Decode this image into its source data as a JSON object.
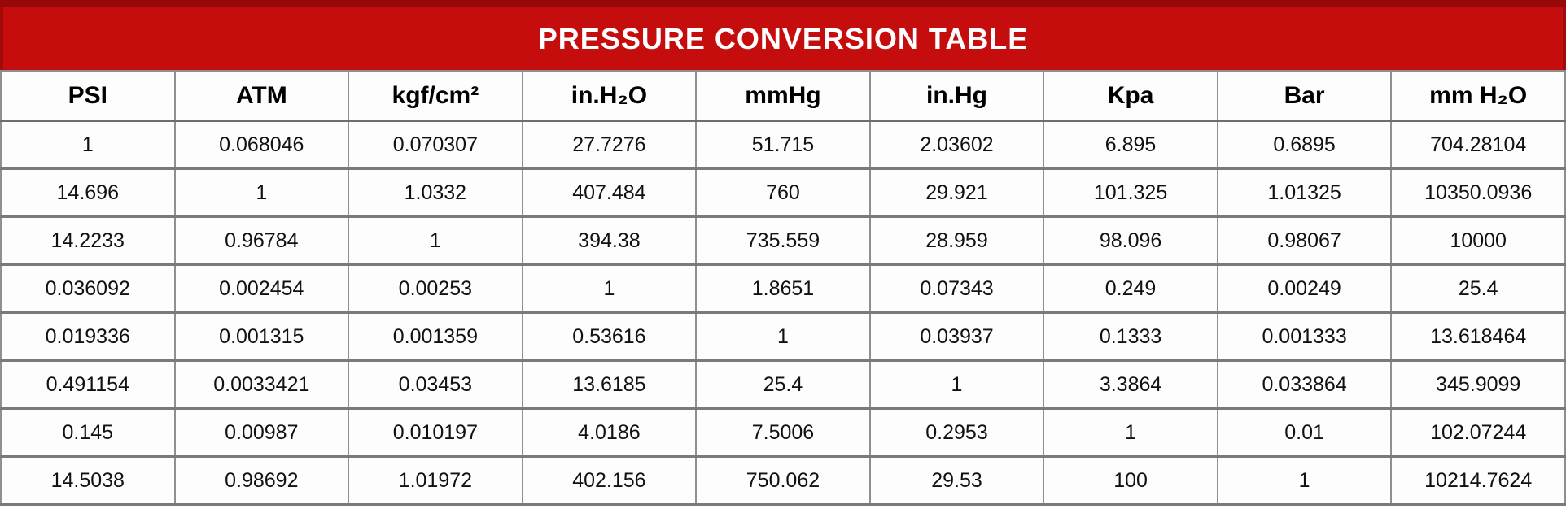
{
  "banner": {
    "title": "PRESSURE CONVERSION TABLE",
    "background_color": "#c60d0d",
    "border_color": "#970909",
    "text_color": "#ffffff"
  },
  "chart_data": {
    "type": "table",
    "title": "PRESSURE CONVERSION TABLE",
    "columns": [
      "PSI",
      "ATM",
      "kgf/cm²",
      "in.H₂O",
      "mmHg",
      "in.Hg",
      "Kpa",
      "Bar",
      "mm H₂O"
    ],
    "rows": [
      [
        "1",
        "0.068046",
        "0.070307",
        "27.7276",
        "51.715",
        "2.03602",
        "6.895",
        "0.6895",
        "704.28104"
      ],
      [
        "14.696",
        "1",
        "1.0332",
        "407.484",
        "760",
        "29.921",
        "101.325",
        "1.01325",
        "10350.0936"
      ],
      [
        "14.2233",
        "0.96784",
        "1",
        "394.38",
        "735.559",
        "28.959",
        "98.096",
        "0.98067",
        "10000"
      ],
      [
        "0.036092",
        "0.002454",
        "0.00253",
        "1",
        "1.8651",
        "0.07343",
        "0.249",
        "0.00249",
        "25.4"
      ],
      [
        "0.019336",
        "0.001315",
        "0.001359",
        "0.53616",
        "1",
        "0.03937",
        "0.1333",
        "0.001333",
        "13.618464"
      ],
      [
        "0.491154",
        "0.0033421",
        "0.03453",
        "13.6185",
        "25.4",
        "1",
        "3.3864",
        "0.033864",
        "345.9099"
      ],
      [
        "0.145",
        "0.00987",
        "0.010197",
        "4.0186",
        "7.5006",
        "0.2953",
        "1",
        "0.01",
        "102.07244"
      ],
      [
        "14.5038",
        "0.98692",
        "1.01972",
        "402.156",
        "750.062",
        "29.53",
        "100",
        "1",
        "10214.7624"
      ]
    ]
  }
}
